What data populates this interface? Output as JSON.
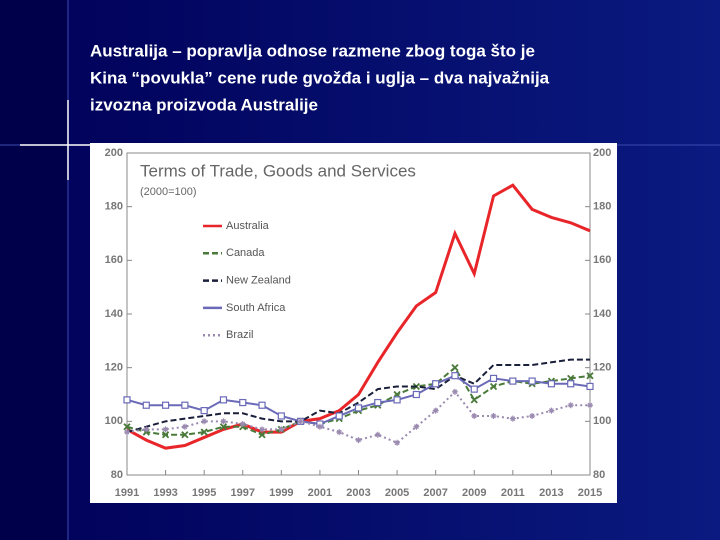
{
  "slide_title": [
    "Australija – popravlja odnose razmene zbog toga što je",
    "Kina “povukla” cene rude gvožđa i uglja – dva najvažnija",
    "izvozna proizvoda Australije"
  ],
  "chart_data": {
    "type": "line",
    "title": "Terms of Trade, Goods and Services",
    "subtitle": "(2000=100)",
    "x": [
      1991,
      1992,
      1993,
      1994,
      1995,
      1996,
      1997,
      1998,
      1999,
      2000,
      2001,
      2002,
      2003,
      2004,
      2005,
      2006,
      2007,
      2008,
      2009,
      2010,
      2011,
      2012,
      2013,
      2014,
      2015
    ],
    "xlim": [
      1991,
      2015
    ],
    "xticks": [
      1991,
      1993,
      1995,
      1997,
      1999,
      2001,
      2003,
      2005,
      2007,
      2009,
      2011,
      2013,
      2015
    ],
    "ylim": [
      80,
      200
    ],
    "yticks": [
      80,
      100,
      120,
      140,
      160,
      180,
      200
    ],
    "y2lim": [
      80,
      200
    ],
    "y2ticks": [
      80,
      100,
      120,
      140,
      160,
      180,
      200
    ],
    "series": [
      {
        "name": "Australia",
        "color": "#e8262a",
        "line_style": "solid",
        "marker": "none",
        "values": [
          97,
          93,
          90,
          91,
          94,
          97,
          99,
          96,
          96,
          100,
          101,
          104,
          110,
          122,
          133,
          143,
          148,
          170,
          155,
          184,
          188,
          179,
          176,
          174,
          171
        ]
      },
      {
        "name": "Canada",
        "color": "#4a7a3a",
        "line_style": "dashed",
        "marker": "x",
        "values": [
          98,
          96,
          95,
          95,
          96,
          98,
          98,
          95,
          97,
          100,
          99,
          101,
          104,
          106,
          110,
          113,
          114,
          120,
          108,
          113,
          115,
          114,
          115,
          116,
          117
        ]
      },
      {
        "name": "New Zealand",
        "color": "#1a1f3a",
        "line_style": "dashed",
        "marker": "none",
        "values": [
          96,
          98,
          100,
          101,
          102,
          103,
          103,
          101,
          100,
          100,
          104,
          103,
          107,
          112,
          113,
          113,
          112,
          117,
          114,
          121,
          121,
          121,
          122,
          123,
          123
        ]
      },
      {
        "name": "South Africa",
        "color": "#6a6ab8",
        "line_style": "solid",
        "marker": "square",
        "values": [
          108,
          106,
          106,
          106,
          104,
          108,
          107,
          106,
          102,
          100,
          99,
          102,
          105,
          107,
          108,
          110,
          114,
          117,
          112,
          116,
          115,
          115,
          114,
          114,
          113
        ]
      },
      {
        "name": "Brazil",
        "color": "#9a8ab0",
        "line_style": "dotted",
        "marker": "asterisk",
        "values": [
          96,
          97,
          97,
          98,
          100,
          100,
          99,
          97,
          97,
          100,
          98,
          96,
          93,
          95,
          92,
          98,
          104,
          111,
          102,
          102,
          101,
          102,
          104,
          106,
          106
        ]
      }
    ]
  }
}
